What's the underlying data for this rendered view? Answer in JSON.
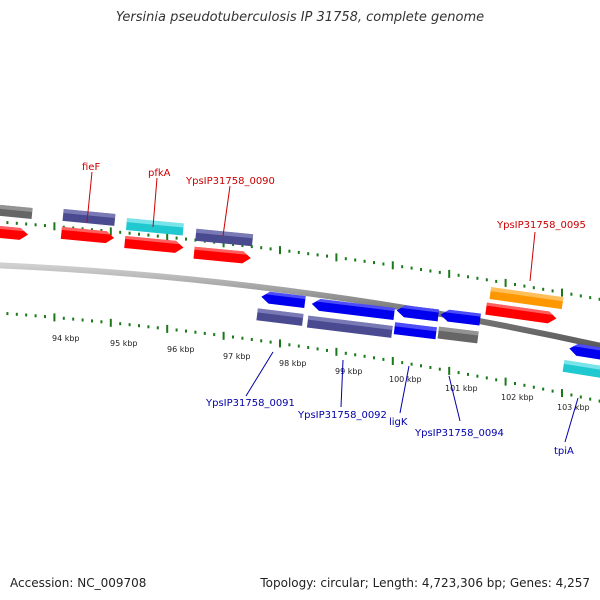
{
  "title": "Yersinia pseudotuberculosis IP 31758, complete genome",
  "footer": {
    "accession": "Accession: NC_009708",
    "topology": "Topology: circular; Length: 4,723,306 bp; Genes: 4,257"
  },
  "ticks": [
    "94 kbp",
    "95 kbp",
    "96 kbp",
    "97 kbp",
    "98 kbp",
    "99 kbp",
    "100 kbp",
    "101 kbp",
    "102 kbp",
    "103 kbp"
  ],
  "upper_labels": [
    "fieF",
    "pfkA",
    "YpsIP31758_0090",
    "YpsIP31758_0095"
  ],
  "lower_labels": [
    "YpsIP31758_0091",
    "YpsIP31758_0092",
    "ligK",
    "YpsIP31758_0094",
    "tpiA"
  ],
  "colors": {
    "forward_label": "#cc0000",
    "reverse_label": "#0000aa",
    "cds_red": "#ff0000",
    "gene_slate": "#4a4a90",
    "gene_cyan": "#20c8d0",
    "gene_orange": "#ff9800",
    "gene_blue": "#0000ee",
    "gene_gray": "#666666",
    "backbone": "#808080",
    "tick_green": "#1a7a1a"
  }
}
